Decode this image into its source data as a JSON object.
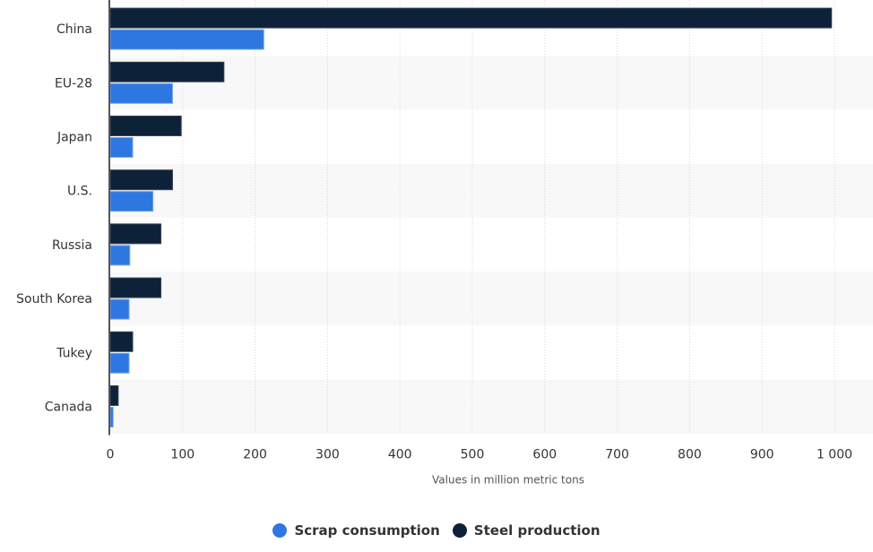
{
  "chart_data": {
    "type": "bar",
    "orientation": "horizontal",
    "title": "",
    "xlabel": "Values in million metric tons",
    "ylabel": "",
    "xlim": [
      0,
      1050
    ],
    "x_ticks": [
      0,
      100,
      200,
      300,
      400,
      500,
      600,
      700,
      800,
      900,
      1000
    ],
    "x_tick_labels": [
      "0",
      "100",
      "200",
      "300",
      "400",
      "500",
      "600",
      "700",
      "800",
      "900",
      "1 000"
    ],
    "grid": true,
    "legend_position": "bottom-center",
    "categories": [
      "China",
      "EU-28",
      "Japan",
      "U.S.",
      "Russia",
      "South Korea",
      "Tukey",
      "Canada"
    ],
    "series": [
      {
        "name": "Steel production",
        "color": "#0d2138",
        "values": [
          996,
          157,
          98,
          86,
          70,
          70,
          31,
          11
        ]
      },
      {
        "name": "Scrap consumption",
        "color": "#2f77e0",
        "values": [
          212,
          86,
          31,
          59,
          27,
          26,
          26,
          4
        ]
      }
    ]
  },
  "legend": {
    "items": [
      {
        "label": "Scrap consumption",
        "color": "#2f77e0"
      },
      {
        "label": "Steel production",
        "color": "#0d2138"
      }
    ]
  },
  "colors": {
    "band": "#f8f8f8",
    "grid": "#d8d8d8",
    "axis": "#555555"
  }
}
